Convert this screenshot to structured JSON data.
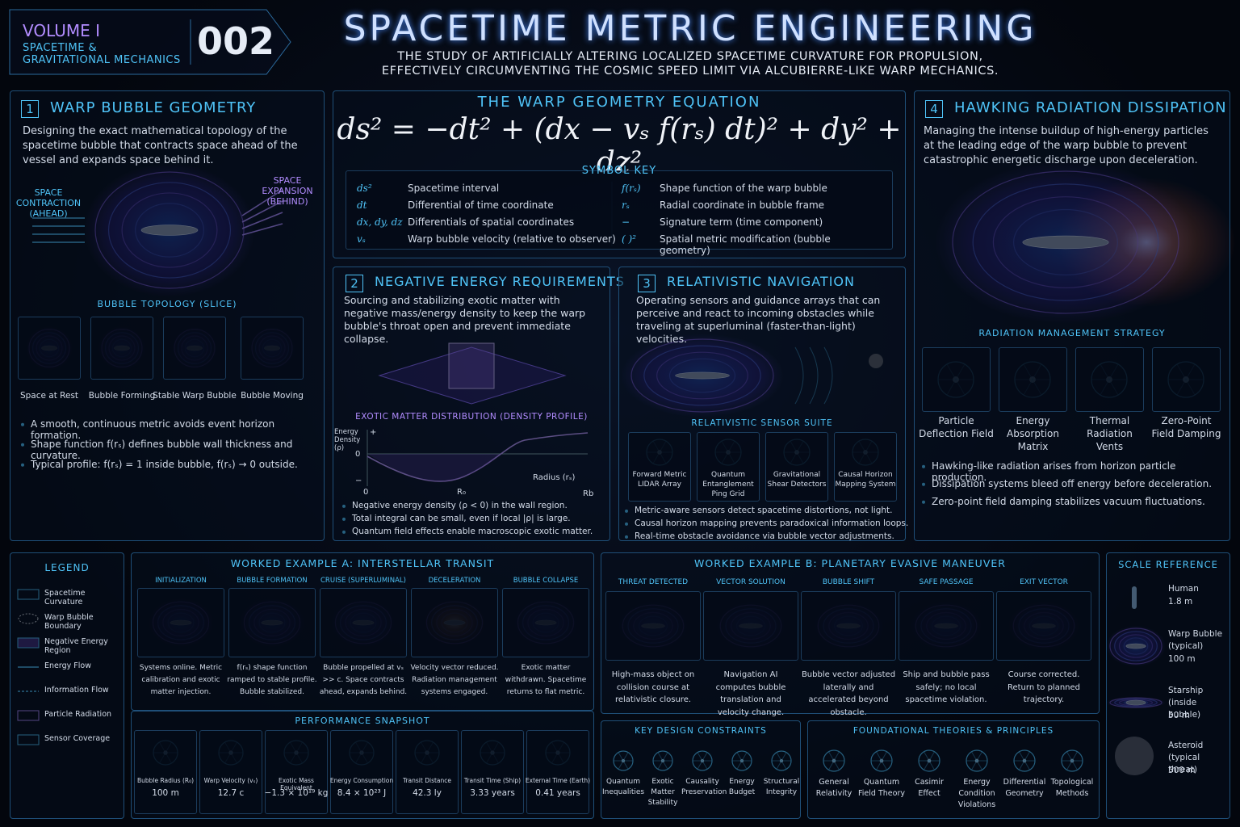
{
  "header": {
    "volume": "VOLUME I",
    "subtitle": [
      "SPACETIME &",
      "GRAVITATIONAL MECHANICS"
    ],
    "number": "002",
    "title": "SPACETIME METRIC ENGINEERING",
    "tagline": [
      "THE STUDY OF ARTIFICIALLY ALTERING LOCALIZED SPACETIME CURVATURE FOR PROPULSION,",
      "EFFECTIVELY CIRCUMVENTING THE COSMIC SPEED LIMIT VIA ALCUBIERRE-LIKE WARP MECHANICS."
    ]
  },
  "geometry": {
    "number": "1",
    "title": "WARP BUBBLE GEOMETRY",
    "description": "Designing the exact mathematical topology of the spacetime bubble that contracts space ahead of the vessel and expands space behind it.",
    "contraction": "SPACE CONTRACTION (AHEAD)",
    "expansion": "SPACE EXPANSION (BEHIND)",
    "topology_title": "BUBBLE TOPOLOGY (SLICE)",
    "topology": [
      "Space at Rest",
      "Bubble Forming",
      "Stable Warp Bubble",
      "Bubble Moving"
    ],
    "bullets": [
      "A smooth, continuous metric avoids event horizon formation.",
      "Shape function f(rₛ) defines bubble wall thickness and curvature.",
      "Typical profile: f(rₛ) = 1 inside bubble, f(rₛ) → 0 outside."
    ]
  },
  "equation": {
    "title": "THE WARP GEOMETRY EQUATION",
    "formula": "ds² = −dt² + (dx − vₛ f(rₛ) dt)² + dy² + dz²",
    "key_title": "SYMBOL KEY",
    "symbols": [
      {
        "symbol": "ds²",
        "meaning": "Spacetime interval"
      },
      {
        "symbol": "dt",
        "meaning": "Differential of time coordinate"
      },
      {
        "symbol": "dx, dy, dz",
        "meaning": "Differentials of spatial coordinates"
      },
      {
        "symbol": "vₛ",
        "meaning": "Warp bubble velocity (relative to observer)"
      },
      {
        "symbol": "f(rₛ)",
        "meaning": "Shape function of the warp bubble"
      },
      {
        "symbol": "rₛ",
        "meaning": "Radial coordinate in bubble frame"
      },
      {
        "symbol": "−",
        "meaning": "Signature term (time component)"
      },
      {
        "symbol": "( )²",
        "meaning": "Spatial metric modification (bubble geometry)"
      }
    ]
  },
  "negative_energy": {
    "number": "2",
    "title": "NEGATIVE ENERGY REQUIREMENTS",
    "description": "Sourcing and stabilizing exotic matter with negative mass/energy density to keep the warp bubble's throat open and prevent immediate collapse.",
    "chart_title": "EXOTIC MATTER DISTRIBUTION (DENSITY PROFILE)",
    "y_label": "Energy Density (ρ)",
    "y_marks": [
      "+",
      "0",
      "−"
    ],
    "x_marks": [
      "0",
      "R₀",
      "Rb"
    ],
    "x_label": "Radius (rₛ)",
    "bullets": [
      "Negative energy density (ρ < 0) in the wall region.",
      "Total integral can be small, even if local |ρ| is large.",
      "Quantum field effects enable macroscopic exotic matter."
    ]
  },
  "navigation": {
    "number": "3",
    "title": "RELATIVISTIC NAVIGATION",
    "description": "Operating sensors and guidance arrays that can perceive and react to incoming obstacles while traveling at superluminal (faster-than-light) velocities.",
    "suite_title": "RELATIVISTIC SENSOR SUITE",
    "sensors": [
      "Forward Metric LIDAR Array",
      "Quantum Entanglement Ping Grid",
      "Gravitational Shear Detectors",
      "Causal Horizon Mapping System"
    ],
    "bullets": [
      "Metric-aware sensors detect spacetime distortions, not light.",
      "Causal horizon mapping prevents paradoxical information loops.",
      "Real-time obstacle avoidance via bubble vector adjustments."
    ]
  },
  "radiation": {
    "number": "4",
    "title": "HAWKING RADIATION DISSIPATION",
    "description": "Managing the intense buildup of high-energy particles at the leading edge of the warp bubble to prevent catastrophic energetic discharge upon deceleration.",
    "strategy_title": "RADIATION MANAGEMENT STRATEGY",
    "items": [
      "Particle Deflection Field",
      "Energy Absorption Matrix",
      "Thermal Radiation Vents",
      "Zero-Point Field Damping"
    ],
    "bullets": [
      "Hawking-like radiation arises from horizon particle production.",
      "Dissipation systems bleed off energy before deceleration.",
      "Zero-point field damping stabilizes vacuum fluctuations."
    ]
  },
  "legend": {
    "title": "LEGEND",
    "items": [
      "Spacetime Curvature",
      "Warp Bubble Boundary",
      "Negative Energy Region",
      "Energy Flow",
      "Information Flow",
      "Particle Radiation",
      "Sensor Coverage"
    ]
  },
  "example_a": {
    "title": "WORKED EXAMPLE A: INTERSTELLAR TRANSIT",
    "stages": [
      {
        "label": "INITIALIZATION",
        "caption": "Systems online. Metric calibration and exotic matter injection."
      },
      {
        "label": "BUBBLE FORMATION",
        "caption": "f(rₛ) shape function ramped to stable profile. Bubble stabilized."
      },
      {
        "label": "CRUISE (SUPERLUMINAL)",
        "caption": "Bubble propelled at vₛ >> c. Space contracts ahead, expands behind."
      },
      {
        "label": "DECELERATION",
        "caption": "Velocity vector reduced. Radiation management systems engaged."
      },
      {
        "label": "BUBBLE COLLAPSE",
        "caption": "Exotic matter withdrawn. Spacetime returns to flat metric."
      }
    ]
  },
  "performance": {
    "title": "PERFORMANCE SNAPSHOT",
    "metrics": [
      {
        "label": "Bubble Radius (R₀)",
        "value": "100 m"
      },
      {
        "label": "Warp Velocity (vₛ)",
        "value": "12.7 c"
      },
      {
        "label": "Exotic Mass Equivalent",
        "value": "−1.3 × 10¹⁹ kg"
      },
      {
        "label": "Energy Consumption",
        "value": "8.4 × 10²³ J"
      },
      {
        "label": "Transit Distance",
        "value": "42.3 ly"
      },
      {
        "label": "Transit Time (Ship)",
        "value": "3.33 years"
      },
      {
        "label": "External Time (Earth)",
        "value": "0.41 years"
      }
    ]
  },
  "example_b": {
    "title": "WORKED EXAMPLE B: PLANETARY EVASIVE MANEUVER",
    "stages": [
      {
        "label": "THREAT DETECTED",
        "caption": "High-mass object on collision course at relativistic closure."
      },
      {
        "label": "VECTOR SOLUTION",
        "caption": "Navigation AI computes bubble translation and velocity change."
      },
      {
        "label": "BUBBLE SHIFT",
        "caption": "Bubble vector adjusted laterally and accelerated beyond obstacle."
      },
      {
        "label": "SAFE PASSAGE",
        "caption": "Ship and bubble pass safely; no local spacetime violation."
      },
      {
        "label": "EXIT VECTOR",
        "caption": "Course corrected. Return to planned trajectory."
      }
    ]
  },
  "scale": {
    "title": "SCALE REFERENCE",
    "items": [
      {
        "name": "Human",
        "size": "1.8 m"
      },
      {
        "name": "Warp Bubble (typical)",
        "size": "100 m"
      },
      {
        "name": "Starship (inside bubble)",
        "size": "50 m"
      },
      {
        "name": "Asteroid (typical threat)",
        "size": "500 m"
      }
    ]
  },
  "constraints": {
    "title": "KEY DESIGN CONSTRAINTS",
    "items": [
      "Quantum Inequalities",
      "Exotic Matter Stability",
      "Causality Preservation",
      "Energy Budget",
      "Structural Integrity"
    ]
  },
  "theories": {
    "title": "FOUNDATIONAL THEORIES & PRINCIPLES",
    "items": [
      "General Relativity",
      "Quantum Field Theory",
      "Casimir Effect",
      "Energy Condition Violations",
      "Differential Geometry",
      "Topological Methods"
    ]
  }
}
